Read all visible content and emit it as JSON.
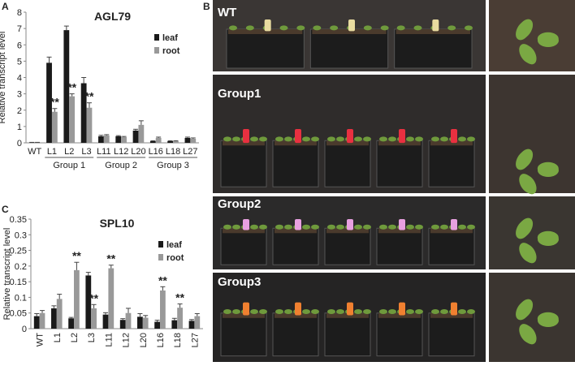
{
  "panels": {
    "a": "A",
    "b": "B",
    "c": "C"
  },
  "photo_labels": [
    "WT",
    "Group1",
    "Group2",
    "Group3"
  ],
  "chart_data": [
    {
      "type": "bar",
      "title": "AGL79",
      "y_label": "Relative transcript level",
      "categories": [
        "WT",
        "L1",
        "L2",
        "L3",
        "L11",
        "L12",
        "L20",
        "L16",
        "L18",
        "L27"
      ],
      "category_groups": [
        {
          "label": "Group 1",
          "categories": [
            "L1",
            "L2",
            "L3"
          ]
        },
        {
          "label": "Group 2",
          "categories": [
            "L11",
            "L12",
            "L20"
          ]
        },
        {
          "label": "Group 3",
          "categories": [
            "L16",
            "L18",
            "L27"
          ]
        }
      ],
      "series": [
        {
          "name": "leaf",
          "color": "#1a1a1a",
          "values": [
            0.02,
            4.9,
            6.9,
            3.65,
            0.4,
            0.4,
            0.75,
            0.1,
            0.1,
            0.3
          ],
          "errors": [
            0.01,
            0.35,
            0.25,
            0.35,
            0.06,
            0.04,
            0.08,
            0.03,
            0.03,
            0.05
          ],
          "significance": [
            null,
            null,
            null,
            null,
            null,
            null,
            null,
            null,
            null,
            null
          ]
        },
        {
          "name": "root",
          "color": "#999999",
          "values": [
            0.02,
            1.9,
            2.85,
            2.15,
            0.45,
            0.35,
            1.1,
            0.3,
            0.1,
            0.25
          ],
          "errors": [
            0.01,
            0.2,
            0.15,
            0.3,
            0.05,
            0.04,
            0.25,
            0.05,
            0.03,
            0.05
          ],
          "significance": [
            null,
            "**",
            "**",
            "**",
            null,
            null,
            null,
            null,
            null,
            null
          ]
        }
      ],
      "ylim": [
        0,
        8
      ],
      "yticks": [
        0,
        1,
        2,
        3,
        4,
        5,
        6,
        7,
        8
      ],
      "legend": "upper right",
      "rotate_x_labels": false
    },
    {
      "type": "bar",
      "title": "SPL10",
      "y_label": "Relative transcript level",
      "categories": [
        "WT",
        "L1",
        "L2",
        "L3",
        "L11",
        "L12",
        "L20",
        "L16",
        "L18",
        "L27"
      ],
      "series": [
        {
          "name": "leaf",
          "color": "#1a1a1a",
          "values": [
            0.04,
            0.065,
            0.033,
            0.17,
            0.045,
            0.028,
            0.038,
            0.022,
            0.027,
            0.025
          ],
          "errors": [
            0.008,
            0.008,
            0.003,
            0.01,
            0.006,
            0.004,
            0.01,
            0.005,
            0.006,
            0.004
          ],
          "significance": [
            null,
            null,
            null,
            null,
            null,
            null,
            null,
            null,
            null,
            null
          ]
        },
        {
          "name": "root",
          "color": "#999999",
          "values": [
            0.05,
            0.095,
            0.187,
            0.065,
            0.193,
            0.05,
            0.035,
            0.122,
            0.067,
            0.04
          ],
          "errors": [
            0.008,
            0.015,
            0.025,
            0.012,
            0.01,
            0.015,
            0.007,
            0.012,
            0.012,
            0.008
          ],
          "significance": [
            null,
            null,
            "**",
            "**",
            "**",
            null,
            null,
            "**",
            "**",
            null
          ]
        }
      ],
      "ylim": [
        0,
        0.35
      ],
      "yticks": [
        0,
        0.05,
        0.1,
        0.15,
        0.2,
        0.25,
        0.3,
        0.35
      ],
      "legend": "upper right",
      "rotate_x_labels": true
    }
  ]
}
